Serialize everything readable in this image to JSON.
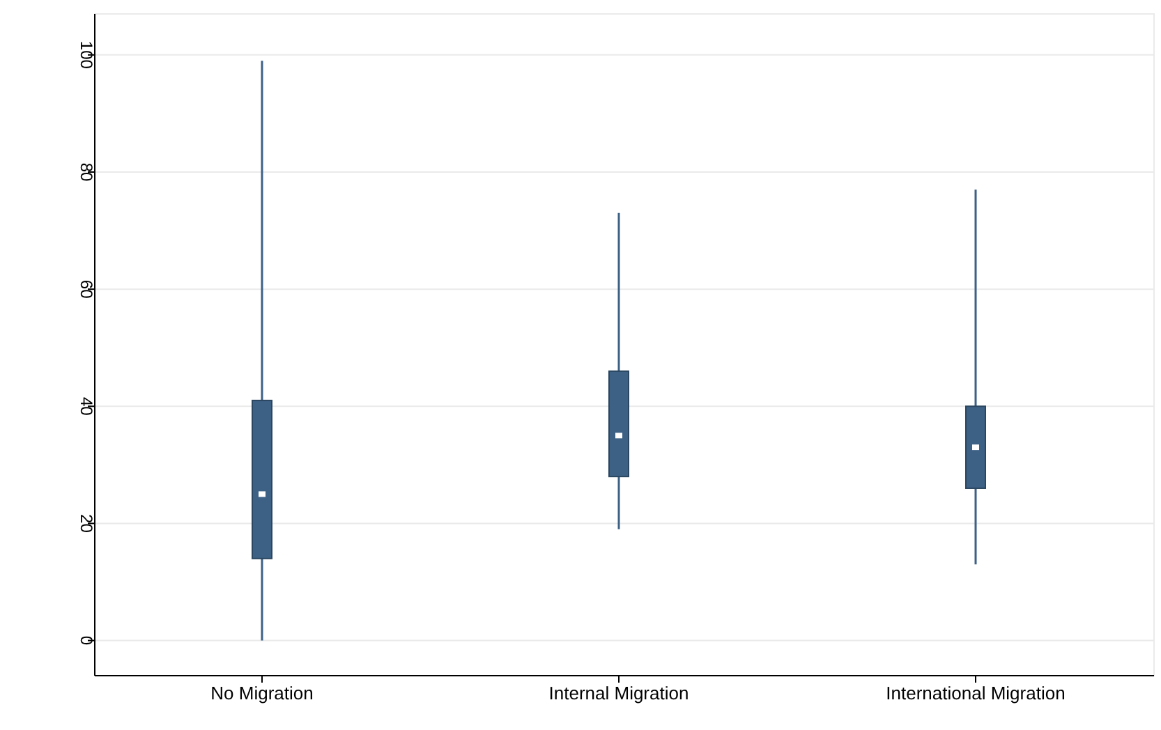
{
  "chart_data": {
    "type": "box",
    "categories": [
      "No Migration",
      "Internal Migration",
      "International Migration"
    ],
    "boxes": [
      {
        "low": 0,
        "q1": 14,
        "median": 25,
        "q3": 41,
        "high": 99
      },
      {
        "low": 19,
        "q1": 28,
        "median": 35,
        "q3": 46,
        "high": 73
      },
      {
        "low": 13,
        "q1": 26,
        "median": 33,
        "q3": 40,
        "high": 77
      }
    ],
    "color": "#3d6185",
    "ylim": [
      -6,
      107
    ],
    "yticks": [
      0,
      20,
      40,
      60,
      80,
      100
    ],
    "grid": "y"
  }
}
